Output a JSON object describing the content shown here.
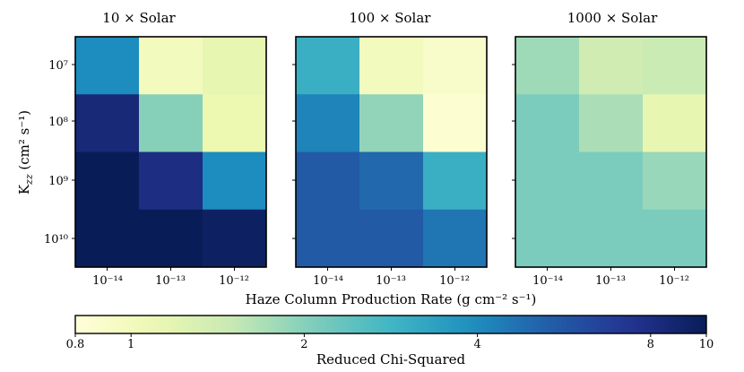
{
  "chart_data": {
    "type": "heatmap",
    "xlabel": "Haze Column Production Rate (g cm⁻² s⁻¹)",
    "ylabel": "K",
    "ylabel_sub": "zz",
    "ylabel_units": " (cm² s⁻¹)",
    "x_tick_labels": [
      "10⁻¹⁴",
      "10⁻¹³",
      "10⁻¹²"
    ],
    "x_values": [
      1e-14,
      1e-13,
      1e-12
    ],
    "y_tick_labels": [
      "10⁷",
      "10⁸",
      "10⁹",
      "10¹⁰"
    ],
    "y_values": [
      10000000.0,
      100000000.0,
      1000000000.0,
      10000000000.0
    ],
    "colormap": "YlGnBu",
    "color_scale": "log",
    "panels": [
      {
        "title": "10 × Solar",
        "values": [
          [
            4.0,
            1.0,
            1.15
          ],
          [
            8.5,
            2.0,
            1.1
          ],
          [
            10.0,
            8.0,
            4.0
          ],
          [
            10.0,
            10.0,
            9.5
          ]
        ]
      },
      {
        "title": "100 × Solar",
        "values": [
          [
            3.0,
            1.0,
            0.9
          ],
          [
            4.2,
            1.9,
            0.85
          ],
          [
            5.5,
            5.0,
            3.0
          ],
          [
            5.5,
            5.5,
            4.6
          ]
        ]
      },
      {
        "title": "1000 × Solar",
        "values": [
          [
            1.8,
            1.4,
            1.45
          ],
          [
            2.1,
            1.7,
            1.15
          ],
          [
            2.1,
            2.1,
            1.85
          ],
          [
            2.1,
            2.1,
            2.1
          ]
        ]
      }
    ],
    "colorbar": {
      "label": "Reduced Chi-Squared",
      "range": [
        0.8,
        10
      ],
      "ticks": [
        0.8,
        1,
        2,
        4,
        8,
        10
      ],
      "tick_labels": [
        "0.8",
        "1",
        "2",
        "4",
        "8",
        "10"
      ]
    }
  }
}
